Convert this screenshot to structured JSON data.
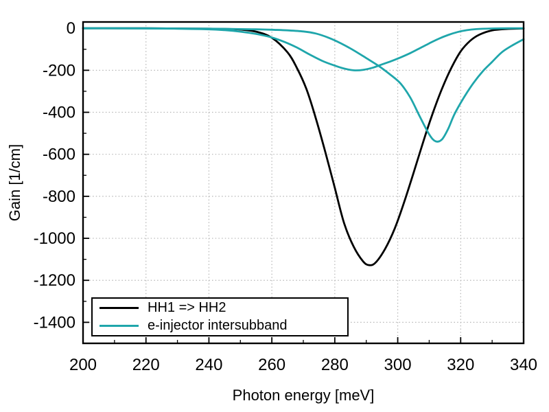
{
  "chart_data": {
    "type": "line",
    "xlabel": "Photon energy [meV]",
    "ylabel": "Gain [1/cm]",
    "xlim": [
      200,
      340
    ],
    "ylim": [
      -1500,
      30
    ],
    "x_ticks": [
      200,
      220,
      240,
      260,
      280,
      300,
      320,
      340
    ],
    "x_tick_labels": [
      "200",
      "220",
      "240",
      "260",
      "280",
      "300",
      "320",
      "340"
    ],
    "x_minor_ticks": [
      210,
      230,
      250,
      270,
      290,
      310,
      330
    ],
    "y_ticks": [
      0,
      -200,
      -400,
      -600,
      -800,
      -1000,
      -1200,
      -1400
    ],
    "y_tick_labels": [
      "0",
      "-200",
      "-400",
      "-600",
      "-800",
      "-1000",
      "-1200",
      "-1400"
    ],
    "y_minor_ticks": [
      -100,
      -300,
      -500,
      -700,
      -900,
      -1100,
      -1300
    ],
    "grid": {
      "show": true,
      "style": "dotted",
      "color": "#b4b4b4",
      "vertical_at": [
        220,
        240,
        260,
        280,
        300,
        320
      ],
      "horizontal_at": [
        -200,
        -400,
        -600,
        -800,
        -1000,
        -1200,
        -1400
      ]
    },
    "axis_color": "#000000",
    "background": "#ffffff",
    "legend": {
      "position": "bottom-left",
      "border_color": "#000000",
      "entries": [
        {
          "label": "HH1 => HH2",
          "color": "#000000"
        },
        {
          "label": "e-injector intersubband",
          "color": "#1fa6ab"
        }
      ]
    },
    "series": [
      {
        "name": "HH1 => HH2",
        "color": "#000000",
        "width": 2.8,
        "points": [
          [
            200,
            0
          ],
          [
            210,
            0
          ],
          [
            220,
            0
          ],
          [
            230,
            -1
          ],
          [
            240,
            -2
          ],
          [
            245,
            -3
          ],
          [
            250,
            -6
          ],
          [
            255,
            -16
          ],
          [
            260,
            -45
          ],
          [
            265,
            -115
          ],
          [
            268,
            -190
          ],
          [
            271,
            -290
          ],
          [
            274,
            -430
          ],
          [
            277,
            -590
          ],
          [
            280,
            -760
          ],
          [
            283,
            -930
          ],
          [
            286,
            -1040
          ],
          [
            289,
            -1110
          ],
          [
            291,
            -1128
          ],
          [
            293,
            -1115
          ],
          [
            296,
            -1050
          ],
          [
            299,
            -955
          ],
          [
            302,
            -830
          ],
          [
            305,
            -690
          ],
          [
            308,
            -545
          ],
          [
            311,
            -410
          ],
          [
            314,
            -290
          ],
          [
            317,
            -190
          ],
          [
            320,
            -110
          ],
          [
            323,
            -60
          ],
          [
            326,
            -30
          ],
          [
            330,
            -10
          ],
          [
            335,
            -3
          ],
          [
            340,
            -1
          ]
        ]
      },
      {
        "name": "e-injector intersubband",
        "color": "#1fa6ab",
        "width": 2.8,
        "points": [
          [
            200,
            0
          ],
          [
            210,
            0
          ],
          [
            220,
            -1
          ],
          [
            230,
            -2
          ],
          [
            240,
            -5
          ],
          [
            245,
            -9
          ],
          [
            250,
            -16
          ],
          [
            255,
            -27
          ],
          [
            260,
            -44
          ],
          [
            264,
            -65
          ],
          [
            268,
            -92
          ],
          [
            272,
            -125
          ],
          [
            276,
            -155
          ],
          [
            280,
            -178
          ],
          [
            283,
            -192
          ],
          [
            286,
            -200
          ],
          [
            289,
            -198
          ],
          [
            292,
            -188
          ],
          [
            295,
            -172
          ],
          [
            298,
            -156
          ],
          [
            301,
            -138
          ],
          [
            304,
            -118
          ],
          [
            307,
            -95
          ],
          [
            310,
            -72
          ],
          [
            313,
            -50
          ],
          [
            316,
            -32
          ],
          [
            319,
            -18
          ],
          [
            322,
            -9
          ],
          [
            325,
            -4
          ],
          [
            330,
            -1
          ],
          [
            335,
            0
          ],
          [
            340,
            0
          ]
        ]
      },
      {
        "name": "e-injector intersubband",
        "color": "#1fa6ab",
        "width": 2.8,
        "points": [
          [
            200,
            0
          ],
          [
            210,
            0
          ],
          [
            220,
            0
          ],
          [
            230,
            -1
          ],
          [
            240,
            -2
          ],
          [
            250,
            -4
          ],
          [
            255,
            -5
          ],
          [
            260,
            -7
          ],
          [
            265,
            -10
          ],
          [
            270,
            -15
          ],
          [
            274,
            -25
          ],
          [
            278,
            -45
          ],
          [
            282,
            -72
          ],
          [
            286,
            -105
          ],
          [
            290,
            -142
          ],
          [
            294,
            -180
          ],
          [
            298,
            -225
          ],
          [
            301,
            -265
          ],
          [
            304,
            -330
          ],
          [
            307,
            -420
          ],
          [
            310,
            -505
          ],
          [
            312,
            -538
          ],
          [
            314,
            -530
          ],
          [
            316,
            -480
          ],
          [
            318,
            -410
          ],
          [
            321,
            -330
          ],
          [
            324,
            -262
          ],
          [
            327,
            -205
          ],
          [
            330,
            -160
          ],
          [
            333,
            -115
          ],
          [
            336,
            -85
          ],
          [
            340,
            -52
          ]
        ]
      }
    ]
  }
}
